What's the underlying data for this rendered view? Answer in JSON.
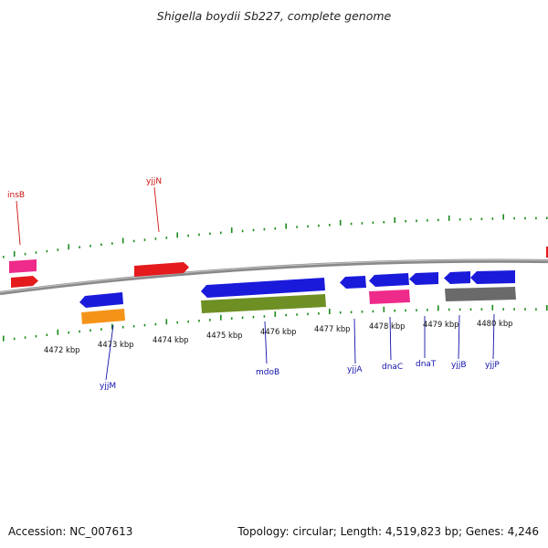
{
  "title": "Shigella boydii Sb227, complete genome",
  "accession": "Accession: NC_007613",
  "topology": "Topology: circular; Length: 4,519,823 bp; Genes: 4,246",
  "colors": {
    "red": "#e41a1c",
    "blue": "#1a1adb",
    "pink": "#ee2a8a",
    "orange": "#f59318",
    "olive": "#6e8f23",
    "gray": "#6a6a6a",
    "tick": "#1a8a1a",
    "label_red": "#cc1111",
    "label_blue": "#1111aa"
  },
  "ruler_labels": [
    "4472 kbp",
    "4473 kbp",
    "4474 kbp",
    "4475 kbp",
    "4476 kbp",
    "4477 kbp",
    "4478 kbp",
    "4479 kbp",
    "4480 kbp"
  ],
  "gene_labels": [
    "insB",
    "yjjN",
    "yjjM",
    "mdoB",
    "yjjA",
    "dnaC",
    "dnaT",
    "yjjB",
    "yjjP"
  ]
}
